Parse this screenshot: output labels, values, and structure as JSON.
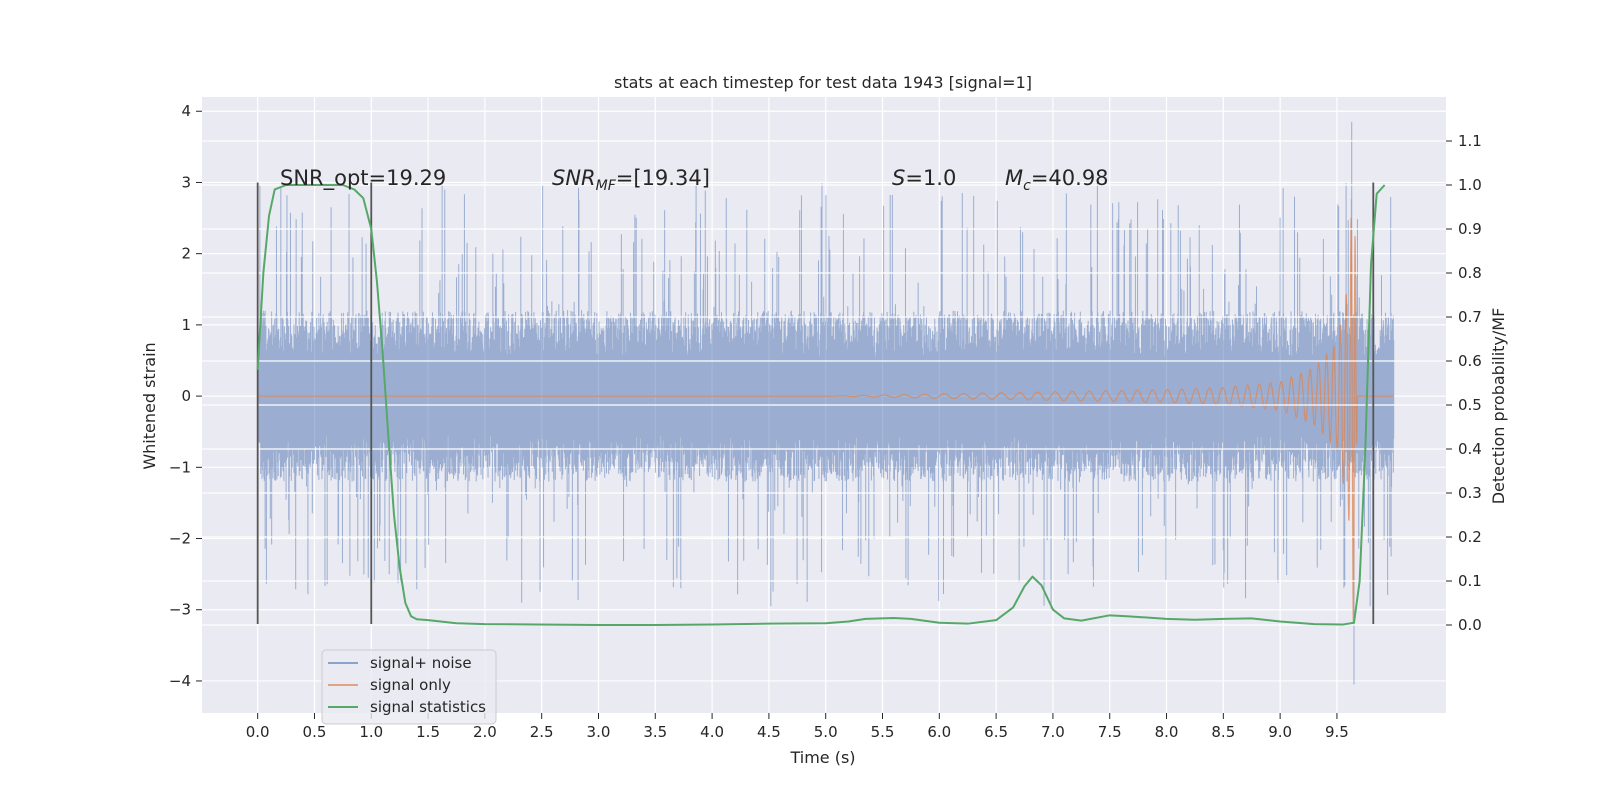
{
  "chart_data": {
    "type": "line",
    "title": "stats at each timestep for test data 1943 [signal=1]",
    "xlabel": "Time (s)",
    "ylabel": "Whitened strain",
    "ylabel_right": "Detection probability/MF",
    "xlim": [
      -0.49,
      10.46
    ],
    "ylim": [
      -4.45,
      4.2
    ],
    "ylim_right": [
      -0.2,
      1.2
    ],
    "x_ticks": [
      0.0,
      0.5,
      1.0,
      1.5,
      2.0,
      2.5,
      3.0,
      3.5,
      4.0,
      4.5,
      5.0,
      5.5,
      6.0,
      6.5,
      7.0,
      7.5,
      8.0,
      8.5,
      9.0,
      9.5
    ],
    "x_tick_labels": [
      "0.0",
      "0.5",
      "1.0",
      "1.5",
      "2.0",
      "2.5",
      "3.0",
      "3.5",
      "4.0",
      "4.5",
      "5.0",
      "5.5",
      "6.0",
      "6.5",
      "7.0",
      "7.5",
      "8.0",
      "8.5",
      "9.0",
      "9.5"
    ],
    "y_ticks": [
      4,
      3,
      2,
      1,
      0,
      -1,
      -2,
      -3,
      -4
    ],
    "y_tick_labels": [
      "4",
      "3",
      "2",
      "1",
      "0",
      "−1",
      "−2",
      "−3",
      "−4"
    ],
    "y_right_ticks": [
      1.1,
      1.0,
      0.9,
      0.8,
      0.7,
      0.6,
      0.5,
      0.4,
      0.3,
      0.2,
      0.1,
      0.0
    ],
    "y_right_tick_labels": [
      "1.1",
      "1.0",
      "0.9",
      "0.8",
      "0.7",
      "0.6",
      "0.5",
      "0.4",
      "0.3",
      "0.2",
      "0.1",
      "0.0"
    ],
    "grid": true,
    "legend_position": "lower-left",
    "colors": {
      "background": "#eaeaf2",
      "noise": "#4c72b0",
      "signal": "#dd8452",
      "statistics": "#55a868",
      "marker": "#555555"
    },
    "series": [
      {
        "name": "signal+ noise",
        "kind": "noise-band",
        "x_range": [
          0.0,
          10.0
        ],
        "typical_abs_amplitude": 1.2,
        "peak_abs_amplitude": 3.0,
        "extremes": [
          {
            "x": 9.63,
            "y": 3.85
          },
          {
            "x": 9.65,
            "y": -4.05
          }
        ]
      },
      {
        "name": "signal only",
        "kind": "chirp",
        "x_range": [
          0.0,
          9.68
        ],
        "envelope": [
          [
            5.0,
            0.0
          ],
          [
            6.0,
            0.03
          ],
          [
            7.0,
            0.06
          ],
          [
            8.0,
            0.09
          ],
          [
            8.5,
            0.12
          ],
          [
            9.0,
            0.2
          ],
          [
            9.3,
            0.4
          ],
          [
            9.5,
            0.75
          ],
          [
            9.6,
            1.6
          ],
          [
            9.65,
            3.4
          ],
          [
            9.68,
            0.0
          ]
        ]
      },
      {
        "name": "signal statistics",
        "axis": "right",
        "points": [
          [
            0.0,
            0.58
          ],
          [
            0.05,
            0.8
          ],
          [
            0.1,
            0.93
          ],
          [
            0.15,
            0.99
          ],
          [
            0.25,
            1.0
          ],
          [
            0.5,
            1.0
          ],
          [
            0.75,
            1.0
          ],
          [
            0.85,
            0.99
          ],
          [
            0.93,
            0.97
          ],
          [
            1.0,
            0.9
          ],
          [
            1.05,
            0.78
          ],
          [
            1.1,
            0.62
          ],
          [
            1.15,
            0.43
          ],
          [
            1.2,
            0.25
          ],
          [
            1.25,
            0.13
          ],
          [
            1.3,
            0.05
          ],
          [
            1.35,
            0.02
          ],
          [
            1.4,
            0.013
          ],
          [
            1.5,
            0.011
          ],
          [
            1.75,
            0.004
          ],
          [
            2.0,
            0.002
          ],
          [
            3.0,
            0.0
          ],
          [
            3.5,
            0.0
          ],
          [
            4.0,
            0.001
          ],
          [
            4.5,
            0.003
          ],
          [
            5.0,
            0.004
          ],
          [
            5.2,
            0.008
          ],
          [
            5.35,
            0.014
          ],
          [
            5.6,
            0.016
          ],
          [
            5.75,
            0.014
          ],
          [
            6.0,
            0.005
          ],
          [
            6.25,
            0.003
          ],
          [
            6.5,
            0.011
          ],
          [
            6.65,
            0.04
          ],
          [
            6.75,
            0.088
          ],
          [
            6.82,
            0.11
          ],
          [
            6.9,
            0.09
          ],
          [
            7.0,
            0.035
          ],
          [
            7.1,
            0.015
          ],
          [
            7.25,
            0.01
          ],
          [
            7.5,
            0.022
          ],
          [
            7.65,
            0.02
          ],
          [
            8.0,
            0.014
          ],
          [
            8.25,
            0.012
          ],
          [
            8.5,
            0.014
          ],
          [
            8.75,
            0.015
          ],
          [
            9.0,
            0.008
          ],
          [
            9.3,
            0.002
          ],
          [
            9.55,
            0.001
          ],
          [
            9.65,
            0.005
          ],
          [
            9.7,
            0.1
          ],
          [
            9.75,
            0.4
          ],
          [
            9.8,
            0.82
          ],
          [
            9.85,
            0.98
          ],
          [
            9.92,
            1.0
          ]
        ]
      }
    ],
    "vertical_markers": [
      {
        "x": 0.0,
        "ymin": -3.2,
        "ymax": 3.0
      },
      {
        "x": 1.0,
        "ymin": -3.2,
        "ymax": 3.0
      },
      {
        "x": 9.82,
        "ymin": -3.2,
        "ymax": 3.0
      }
    ],
    "annotations": [
      {
        "key": "snr_opt",
        "parts": [
          {
            "t": "SNR_opt=19.29"
          }
        ]
      },
      {
        "key": "snr_mf",
        "parts": [
          {
            "t": "SNR",
            "italic": true
          },
          {
            "t": "MF",
            "italic": true,
            "sub": true
          },
          {
            "t": "=[19.34]"
          }
        ]
      },
      {
        "key": "s",
        "parts": [
          {
            "t": "S",
            "italic": true
          },
          {
            "t": "=1.0"
          }
        ]
      },
      {
        "key": "mc",
        "parts": [
          {
            "t": "M",
            "italic": true
          },
          {
            "t": "c",
            "italic": true,
            "sub": true
          },
          {
            "t": "=40.98"
          }
        ]
      }
    ]
  }
}
